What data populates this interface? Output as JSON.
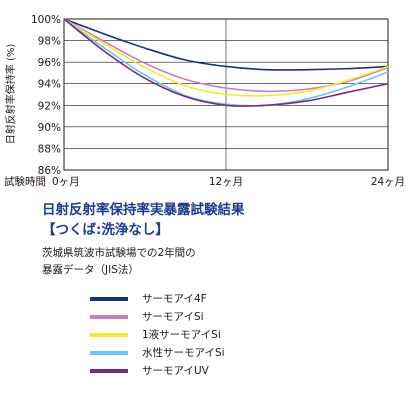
{
  "chart_data": {
    "type": "line",
    "title": "日射反射率保持率実暴露試験結果",
    "subtitle": "【つくば:洗浄なし】",
    "description_lines": [
      "茨城県筑波市試験場での2年間の",
      "暴露データ（JIS法）"
    ],
    "ylabel": "日射反射率保持率 (%)",
    "xlabel": "試験時間",
    "ylim": [
      86,
      100
    ],
    "y_ticks": [
      "100%",
      "98%",
      "96%",
      "94%",
      "92%",
      "90%",
      "88%",
      "86%"
    ],
    "xlim": [
      0,
      24
    ],
    "x_ticks": [
      {
        "value": 0,
        "label": "0ヶ月"
      },
      {
        "value": 12,
        "label": "12ヶ月"
      },
      {
        "value": 24,
        "label": "24ヶ月"
      }
    ],
    "grid": true,
    "legend_position": "bottom",
    "series": [
      {
        "name": "サーモアイ4F",
        "color": "#1d2f7a",
        "points": [
          [
            0,
            100
          ],
          [
            3,
            98.6
          ],
          [
            6,
            97.3
          ],
          [
            9,
            96.2
          ],
          [
            12,
            95.6
          ],
          [
            15,
            95.3
          ],
          [
            18,
            95.3
          ],
          [
            21,
            95.4
          ],
          [
            24,
            95.6
          ]
        ]
      },
      {
        "name": "サーモアイSi",
        "color": "#c77fc0",
        "points": [
          [
            0,
            100
          ],
          [
            3,
            97.9
          ],
          [
            6,
            95.9
          ],
          [
            9,
            94.4
          ],
          [
            12,
            93.6
          ],
          [
            15,
            93.3
          ],
          [
            18,
            93.5
          ],
          [
            21,
            94.2
          ],
          [
            24,
            95.5
          ]
        ]
      },
      {
        "name": "1液サーモアイSi",
        "color": "#f3ea2e",
        "points": [
          [
            0,
            100
          ],
          [
            3,
            97.7
          ],
          [
            6,
            95.5
          ],
          [
            9,
            93.8
          ],
          [
            12,
            93.0
          ],
          [
            15,
            92.9
          ],
          [
            18,
            93.3
          ],
          [
            21,
            94.3
          ],
          [
            24,
            95.6
          ]
        ]
      },
      {
        "name": "水性サーモアイSi",
        "color": "#6ec6e8",
        "points": [
          [
            0,
            100
          ],
          [
            3,
            97.3
          ],
          [
            6,
            94.8
          ],
          [
            9,
            92.9
          ],
          [
            12,
            92.1
          ],
          [
            15,
            92.0
          ],
          [
            18,
            92.6
          ],
          [
            21,
            93.7
          ],
          [
            24,
            95.1
          ]
        ]
      },
      {
        "name": "サーモアイUV",
        "color": "#7a2a7e",
        "points": [
          [
            0,
            100
          ],
          [
            3,
            97.0
          ],
          [
            6,
            94.5
          ],
          [
            9,
            92.8
          ],
          [
            12,
            92.0
          ],
          [
            15,
            92.0
          ],
          [
            18,
            92.4
          ],
          [
            21,
            93.2
          ],
          [
            24,
            94.0
          ]
        ]
      }
    ]
  }
}
